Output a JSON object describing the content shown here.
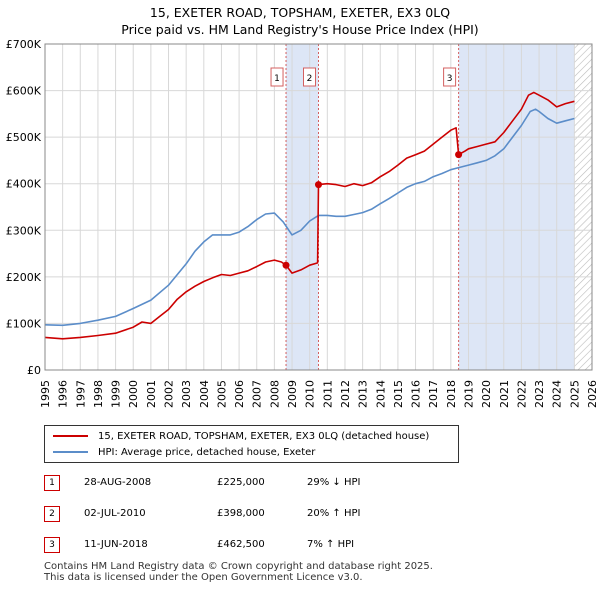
{
  "title": "15, EXETER ROAD, TOPSHAM, EXETER, EX3 0LQ",
  "subtitle": "Price paid vs. HM Land Registry's House Price Index (HPI)",
  "colors": {
    "property": "#cc0000",
    "hpi": "#5b8dc9",
    "shade": "#dde6f6",
    "grid": "#d8d8d8",
    "marker_line": "#d46060",
    "hatch": "#bbbbbb"
  },
  "chart_data": {
    "type": "line",
    "xlim": [
      1995,
      2026
    ],
    "ylim": [
      0,
      700000
    ],
    "x_ticks": [
      "1995",
      "1996",
      "1997",
      "1998",
      "1999",
      "2000",
      "2001",
      "2002",
      "2003",
      "2004",
      "2005",
      "2006",
      "2007",
      "2008",
      "2009",
      "2010",
      "2011",
      "2012",
      "2013",
      "2014",
      "2015",
      "2016",
      "2017",
      "2018",
      "2019",
      "2020",
      "2021",
      "2022",
      "2023",
      "2024",
      "2025",
      "2026"
    ],
    "y_ticks": [
      {
        "value": 0,
        "label": "£0"
      },
      {
        "value": 100000,
        "label": "£100K"
      },
      {
        "value": 200000,
        "label": "£200K"
      },
      {
        "value": 300000,
        "label": "£300K"
      },
      {
        "value": 400000,
        "label": "£400K"
      },
      {
        "value": 500000,
        "label": "£500K"
      },
      {
        "value": 600000,
        "label": "£600K"
      },
      {
        "value": 700000,
        "label": "£700K"
      }
    ],
    "shaded_ranges": [
      [
        2008.66,
        2010.5
      ],
      [
        2018.44,
        2025.0
      ]
    ],
    "hatched_from": 2025.0,
    "series": [
      {
        "name": "15, EXETER ROAD, TOPSHAM, EXETER, EX3 0LQ (detached house)",
        "color": "#cc0000",
        "points": [
          [
            1995.0,
            70000
          ],
          [
            1996.0,
            67000
          ],
          [
            1997.0,
            70000
          ],
          [
            1998.0,
            74000
          ],
          [
            1999.0,
            79000
          ],
          [
            2000.0,
            92000
          ],
          [
            2000.5,
            103000
          ],
          [
            2001.0,
            100000
          ],
          [
            2001.5,
            115000
          ],
          [
            2002.0,
            130000
          ],
          [
            2002.5,
            152000
          ],
          [
            2003.0,
            168000
          ],
          [
            2003.5,
            180000
          ],
          [
            2004.0,
            190000
          ],
          [
            2004.5,
            198000
          ],
          [
            2005.0,
            205000
          ],
          [
            2005.5,
            203000
          ],
          [
            2006.0,
            208000
          ],
          [
            2006.5,
            213000
          ],
          [
            2007.0,
            222000
          ],
          [
            2007.5,
            232000
          ],
          [
            2008.0,
            236000
          ],
          [
            2008.4,
            232000
          ],
          [
            2008.66,
            225000
          ],
          [
            2009.0,
            208000
          ],
          [
            2009.5,
            215000
          ],
          [
            2010.0,
            225000
          ],
          [
            2010.45,
            230000
          ],
          [
            2010.5,
            398000
          ],
          [
            2011.0,
            400000
          ],
          [
            2011.5,
            398000
          ],
          [
            2012.0,
            394000
          ],
          [
            2012.5,
            400000
          ],
          [
            2013.0,
            396000
          ],
          [
            2013.5,
            402000
          ],
          [
            2014.0,
            415000
          ],
          [
            2014.5,
            426000
          ],
          [
            2015.0,
            440000
          ],
          [
            2015.5,
            455000
          ],
          [
            2016.0,
            462000
          ],
          [
            2016.5,
            470000
          ],
          [
            2017.0,
            485000
          ],
          [
            2017.5,
            500000
          ],
          [
            2018.0,
            515000
          ],
          [
            2018.3,
            520000
          ],
          [
            2018.44,
            462500
          ],
          [
            2018.8,
            470000
          ],
          [
            2019.0,
            475000
          ],
          [
            2019.5,
            480000
          ],
          [
            2020.0,
            485000
          ],
          [
            2020.5,
            490000
          ],
          [
            2021.0,
            510000
          ],
          [
            2021.5,
            535000
          ],
          [
            2022.0,
            560000
          ],
          [
            2022.4,
            590000
          ],
          [
            2022.7,
            596000
          ],
          [
            2023.0,
            590000
          ],
          [
            2023.5,
            580000
          ],
          [
            2024.0,
            565000
          ],
          [
            2024.5,
            572000
          ],
          [
            2025.0,
            577000
          ]
        ]
      },
      {
        "name": "HPI: Average price, detached house, Exeter",
        "color": "#5b8dc9",
        "points": [
          [
            1995.0,
            97000
          ],
          [
            1996.0,
            96000
          ],
          [
            1997.0,
            100000
          ],
          [
            1998.0,
            107000
          ],
          [
            1999.0,
            115000
          ],
          [
            2000.0,
            132000
          ],
          [
            2001.0,
            150000
          ],
          [
            2002.0,
            182000
          ],
          [
            2003.0,
            228000
          ],
          [
            2003.5,
            255000
          ],
          [
            2004.0,
            275000
          ],
          [
            2004.5,
            290000
          ],
          [
            2005.0,
            290000
          ],
          [
            2005.5,
            290000
          ],
          [
            2006.0,
            296000
          ],
          [
            2006.5,
            308000
          ],
          [
            2007.0,
            323000
          ],
          [
            2007.5,
            335000
          ],
          [
            2008.0,
            337000
          ],
          [
            2008.5,
            318000
          ],
          [
            2009.0,
            290000
          ],
          [
            2009.5,
            300000
          ],
          [
            2010.0,
            320000
          ],
          [
            2010.5,
            332000
          ],
          [
            2011.0,
            332000
          ],
          [
            2011.5,
            330000
          ],
          [
            2012.0,
            330000
          ],
          [
            2012.5,
            334000
          ],
          [
            2013.0,
            338000
          ],
          [
            2013.5,
            345000
          ],
          [
            2014.0,
            357000
          ],
          [
            2014.5,
            368000
          ],
          [
            2015.0,
            380000
          ],
          [
            2015.5,
            392000
          ],
          [
            2016.0,
            400000
          ],
          [
            2016.5,
            405000
          ],
          [
            2017.0,
            415000
          ],
          [
            2017.5,
            422000
          ],
          [
            2018.0,
            430000
          ],
          [
            2018.5,
            435000
          ],
          [
            2019.0,
            440000
          ],
          [
            2019.5,
            445000
          ],
          [
            2020.0,
            450000
          ],
          [
            2020.5,
            460000
          ],
          [
            2021.0,
            475000
          ],
          [
            2021.5,
            500000
          ],
          [
            2022.0,
            525000
          ],
          [
            2022.5,
            555000
          ],
          [
            2022.8,
            560000
          ],
          [
            2023.0,
            555000
          ],
          [
            2023.5,
            540000
          ],
          [
            2024.0,
            530000
          ],
          [
            2024.5,
            535000
          ],
          [
            2025.0,
            540000
          ]
        ]
      }
    ],
    "sales": [
      {
        "id": "1",
        "x": 2008.66,
        "y": 225000
      },
      {
        "id": "2",
        "x": 2010.5,
        "y": 398000
      },
      {
        "id": "3",
        "x": 2018.44,
        "y": 462500
      }
    ]
  },
  "legend": {
    "property_label": "15, EXETER ROAD, TOPSHAM, EXETER, EX3 0LQ (detached house)",
    "hpi_label": "HPI: Average price, detached house, Exeter"
  },
  "transactions": [
    {
      "num": "1",
      "date": "28-AUG-2008",
      "price": "£225,000",
      "hpi": "29% ↓ HPI"
    },
    {
      "num": "2",
      "date": "02-JUL-2010",
      "price": "£398,000",
      "hpi": "20% ↑ HPI"
    },
    {
      "num": "3",
      "date": "11-JUN-2018",
      "price": "£462,500",
      "hpi": "7% ↑ HPI"
    }
  ],
  "footer": {
    "line1": "Contains HM Land Registry data © Crown copyright and database right 2025.",
    "line2": "This data is licensed under the Open Government Licence v3.0."
  }
}
